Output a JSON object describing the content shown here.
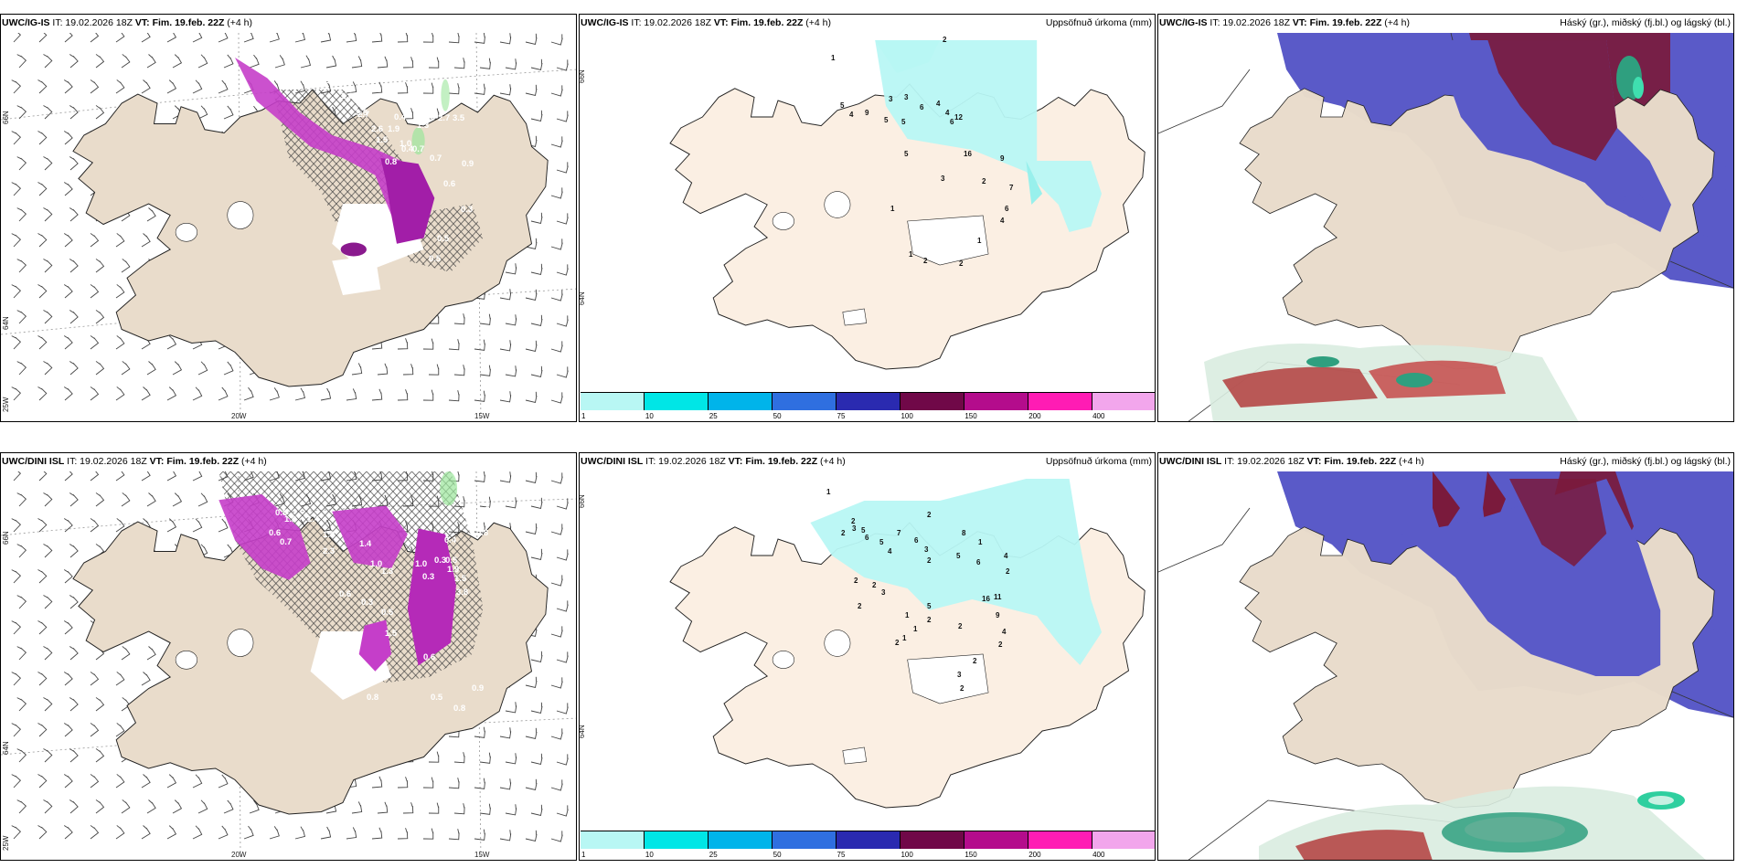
{
  "panels": {
    "p1": {
      "model": "UWC/IG-IS",
      "it": "IT: 19.02.2026 18Z",
      "vt_label": "VT:",
      "vt": "Fim. 19.feb. 22Z",
      "lead": "(+4 h)"
    },
    "p2": {
      "model": "UWC/IG-IS",
      "it": "IT: 19.02.2026 18Z",
      "vt_label": "VT:",
      "vt": "Fim. 19.feb. 22Z",
      "lead": "(+4 h)",
      "right_title": "Uppsöfnuð úrkoma (mm)"
    },
    "p3": {
      "model": "UWC/IG-IS",
      "it": "IT: 19.02.2026 18Z",
      "vt_label": "VT:",
      "vt": "Fim. 19.feb. 22Z",
      "lead": "(+4 h)",
      "right_title": "Háský (gr.), miðský (fj.bl.) og lágský (bl.)"
    },
    "p4": {
      "model": "UWC/DINI ISL",
      "it": "IT: 19.02.2026 18Z",
      "vt_label": "VT:",
      "vt": "Fim. 19.feb. 22Z",
      "lead": "(+4 h)"
    },
    "p5": {
      "model": "UWC/DINI ISL",
      "it": "IT: 19.02.2026 18Z",
      "vt_label": "VT:",
      "vt": "Fim. 19.feb. 22Z",
      "lead": "(+4 h)",
      "right_title": "Uppsöfnuð úrkoma (mm)"
    },
    "p6": {
      "model": "UWC/DINI ISL",
      "it": "IT: 19.02.2026 18Z",
      "vt_label": "VT:",
      "vt": "Fim. 19.feb. 22Z",
      "lead": "(+4 h)",
      "right_title": "Háský (gr.), miðský (fj.bl.) og lágský (bl.)"
    }
  },
  "axes": {
    "lat_66": "66N",
    "lat_64": "64N",
    "lon_25": "25W",
    "lon_20": "20W",
    "lon_15": "15W",
    "lat_66_r": "66N",
    "lat_64_r": "64N"
  },
  "colorbar": {
    "ticks": [
      "1",
      "10",
      "25",
      "50",
      "75",
      "100",
      "150",
      "200",
      "400"
    ],
    "colors": [
      "#b8f7f4",
      "#00e6e6",
      "#00b4ea",
      "#2f6fe0",
      "#2a2ab0",
      "#700848",
      "#b40c8c",
      "#ff1cb4",
      "#f2a6ec"
    ]
  },
  "precip_labels": {
    "top": [
      "1",
      "2",
      "5",
      "4",
      "3",
      "3",
      "6",
      "4",
      "9",
      "5",
      "5",
      "6",
      "4",
      "12",
      "5",
      "16",
      "9",
      "3",
      "2",
      "7",
      "1",
      "6",
      "4",
      "1",
      "2",
      "2",
      "1"
    ],
    "bottom": [
      "1",
      "2",
      "2",
      "3",
      "5",
      "2",
      "6",
      "5",
      "4",
      "7",
      "6",
      "3",
      "2",
      "8",
      "1",
      "4",
      "5",
      "6",
      "2",
      "2",
      "2",
      "3",
      "5",
      "1",
      "2",
      "1",
      "1",
      "2",
      "11",
      "16",
      "9",
      "4",
      "2",
      "2",
      "3",
      "2",
      "2",
      "2"
    ]
  },
  "snow_labels": {
    "top": [
      "0.8",
      "1.0",
      "1.6",
      "0.9",
      "2.7",
      "3.6",
      "2.6",
      "1.9",
      "0.4",
      "0.5",
      "1.3",
      "2.7",
      "3.5",
      "1.5",
      "1.0",
      "0.8",
      "0.4",
      "0.7",
      "0.7",
      "0.9",
      "0.6",
      "0.3",
      "0.5",
      "0.5"
    ],
    "bottom": [
      "0.8",
      "1.9",
      "1.4",
      "0.6",
      "0.7",
      "1.9",
      "2.3",
      "1.4",
      "1.0",
      "1.3",
      "1.0",
      "0.3",
      "0.5",
      "1.9",
      "1.5",
      "3.8",
      "1.0",
      "0.8",
      "0.4",
      "0.3",
      "0.6",
      "0.3",
      "0.5",
      "1.5",
      "0.6",
      "0.8",
      "0.5",
      "0.8",
      "0.9"
    ]
  }
}
